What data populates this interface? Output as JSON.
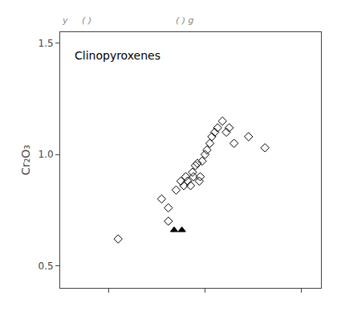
{
  "chart_data": {
    "type": "scatter",
    "subtitle": "y     ( )                              ( ) g",
    "annotation": "Clinopyroxenes",
    "ylabel": "Cr₂O₃",
    "xlim": [
      2.5,
      5.2
    ],
    "xticks": [
      3.0,
      4.0,
      5.0
    ],
    "ylim": [
      0.4,
      1.55
    ],
    "yticks": [
      0.5,
      {
        "value": 1.0,
        "label": "1.0"
      },
      1.5
    ],
    "tick_labels": "y",
    "grid": false,
    "series": [
      {
        "marker": "diamond-open",
        "color": "#000000",
        "x": [
          3.55,
          3.62,
          3.7,
          3.75,
          3.78,
          3.8,
          3.82,
          3.85,
          3.87,
          3.88,
          3.9,
          3.92,
          3.94,
          3.95,
          3.97,
          4.0,
          4.02,
          4.05,
          4.07,
          4.1,
          4.13,
          4.18,
          4.22,
          4.25,
          4.3,
          4.45,
          4.62
        ],
        "values": [
          0.8,
          0.76,
          0.84,
          0.88,
          0.86,
          0.9,
          0.88,
          0.86,
          0.92,
          0.9,
          0.95,
          0.96,
          0.88,
          0.9,
          0.97,
          1.0,
          1.02,
          1.05,
          1.08,
          1.1,
          1.12,
          1.15,
          1.1,
          1.12,
          1.05,
          1.08,
          1.03
        ]
      },
      {
        "marker": "diamond-open",
        "color": "#000000",
        "x": [
          3.1,
          3.62
        ],
        "values": [
          0.62,
          0.7
        ]
      },
      {
        "marker": "triangle-up",
        "color": "#000000",
        "x": [
          3.68,
          3.76
        ],
        "values": [
          0.66,
          0.66
        ]
      }
    ]
  }
}
